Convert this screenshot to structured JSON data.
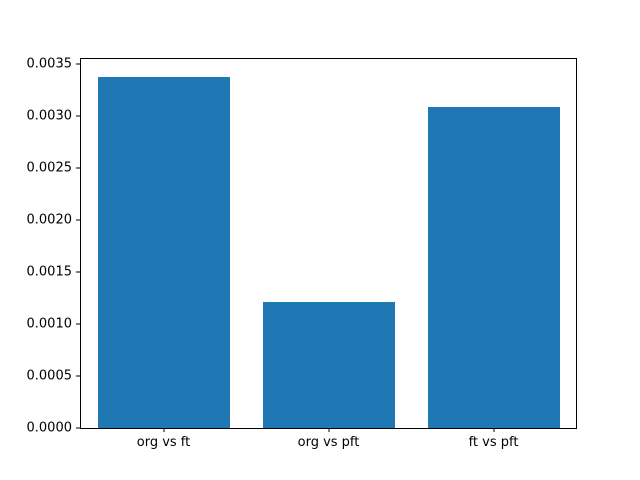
{
  "chart_data": {
    "type": "bar",
    "categories": [
      "org vs ft",
      "org vs pft",
      "ft vs pft"
    ],
    "values": [
      0.00338,
      0.00121,
      0.00309
    ],
    "title": "",
    "xlabel": "",
    "ylabel": "",
    "ylim": [
      0,
      0.003549
    ],
    "yticks": [
      0.0,
      0.0005,
      0.001,
      0.0015,
      0.002,
      0.0025,
      0.003,
      0.0035
    ],
    "ytick_labels": [
      "0.0000",
      "0.0005",
      "0.0010",
      "0.0015",
      "0.0020",
      "0.0025",
      "0.0030",
      "0.0035"
    ],
    "bar_color": "#1f77b4",
    "bar_width_fraction": 0.8,
    "grid": false,
    "legend": false
  }
}
